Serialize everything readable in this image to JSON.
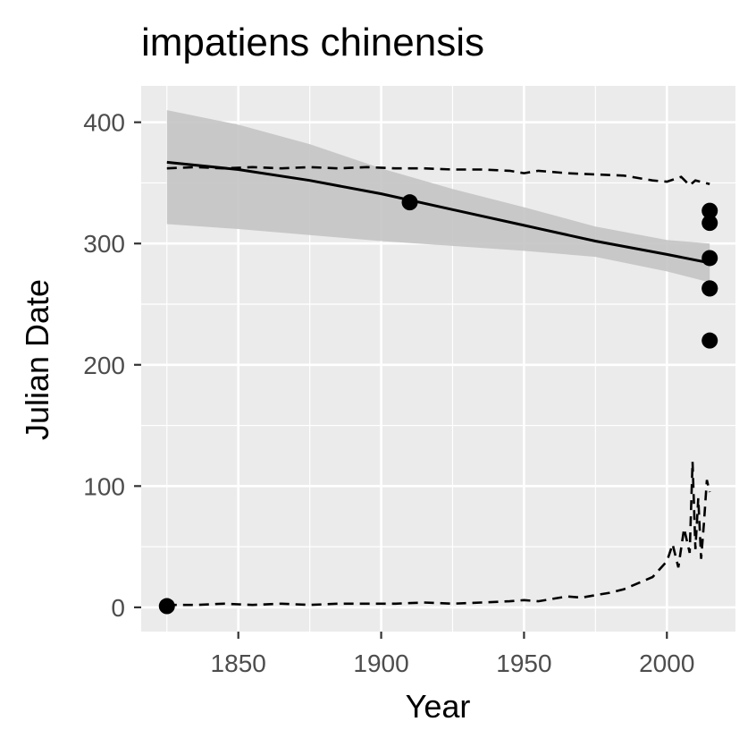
{
  "chart_data": {
    "type": "scatter",
    "title": "impatiens chinensis",
    "xlabel": "Year",
    "ylabel": "Julian Date",
    "xlim": [
      1816,
      2024
    ],
    "ylim": [
      -20,
      430
    ],
    "x_ticks": [
      1850,
      1900,
      1950,
      2000
    ],
    "y_ticks": [
      0,
      100,
      200,
      300,
      400
    ],
    "x_tick_labels": [
      "1850",
      "1900",
      "1950",
      "2000"
    ],
    "y_tick_labels": [
      "0",
      "100",
      "200",
      "300",
      "400"
    ],
    "grid": true,
    "legend": "none",
    "colors": {
      "panel_background": "#ebebeb",
      "grid": "#ffffff",
      "ribbon": "#c4c4c4",
      "line": "#000000",
      "points": "#000000",
      "tick_text": "#4d4d4d"
    },
    "points": [
      {
        "x": 1825,
        "y": 1
      },
      {
        "x": 1910,
        "y": 334
      },
      {
        "x": 2015,
        "y": 327
      },
      {
        "x": 2015,
        "y": 317
      },
      {
        "x": 2015,
        "y": 288
      },
      {
        "x": 2015,
        "y": 263
      },
      {
        "x": 2015,
        "y": 263
      },
      {
        "x": 2015,
        "y": 220
      }
    ],
    "trend_line": {
      "x": [
        1825,
        1850,
        1875,
        1900,
        1925,
        1950,
        1975,
        2000,
        2015
      ],
      "y": [
        367,
        361,
        352,
        341,
        328,
        315,
        302,
        291,
        284
      ]
    },
    "confidence_band": {
      "x": [
        1825,
        1850,
        1875,
        1900,
        1925,
        1950,
        1975,
        2000,
        2015
      ],
      "upper": [
        410,
        398,
        382,
        362,
        345,
        330,
        314,
        303,
        300
      ],
      "lower": [
        316,
        312,
        307,
        302,
        298,
        294,
        289,
        277,
        268
      ]
    },
    "upper_dashed": {
      "x": [
        1825,
        1835,
        1845,
        1855,
        1865,
        1875,
        1885,
        1895,
        1905,
        1915,
        1925,
        1935,
        1945,
        1950,
        1955,
        1965,
        1975,
        1985,
        1990,
        1995,
        2000,
        2005,
        2008,
        2010,
        2015
      ],
      "y": [
        362,
        363,
        362,
        363,
        362,
        363,
        362,
        363,
        362,
        362,
        361,
        361,
        360,
        358,
        360,
        358,
        357,
        356,
        354,
        352,
        351,
        355,
        348,
        352,
        349
      ]
    },
    "lower_dashed": {
      "x": [
        1825,
        1835,
        1845,
        1855,
        1865,
        1875,
        1885,
        1895,
        1905,
        1915,
        1925,
        1935,
        1945,
        1950,
        1955,
        1960,
        1965,
        1970,
        1975,
        1980,
        1985,
        1990,
        1995,
        2000,
        2002,
        2004,
        2006,
        2008,
        2009,
        2010,
        2011,
        2012,
        2013,
        2014,
        2015
      ],
      "y": [
        2,
        2,
        3,
        2,
        3,
        2,
        3,
        3,
        3,
        4,
        3,
        4,
        5,
        6,
        5,
        7,
        9,
        8,
        10,
        12,
        15,
        20,
        25,
        38,
        52,
        33,
        65,
        45,
        120,
        48,
        90,
        40,
        70,
        105,
        95
      ]
    }
  }
}
